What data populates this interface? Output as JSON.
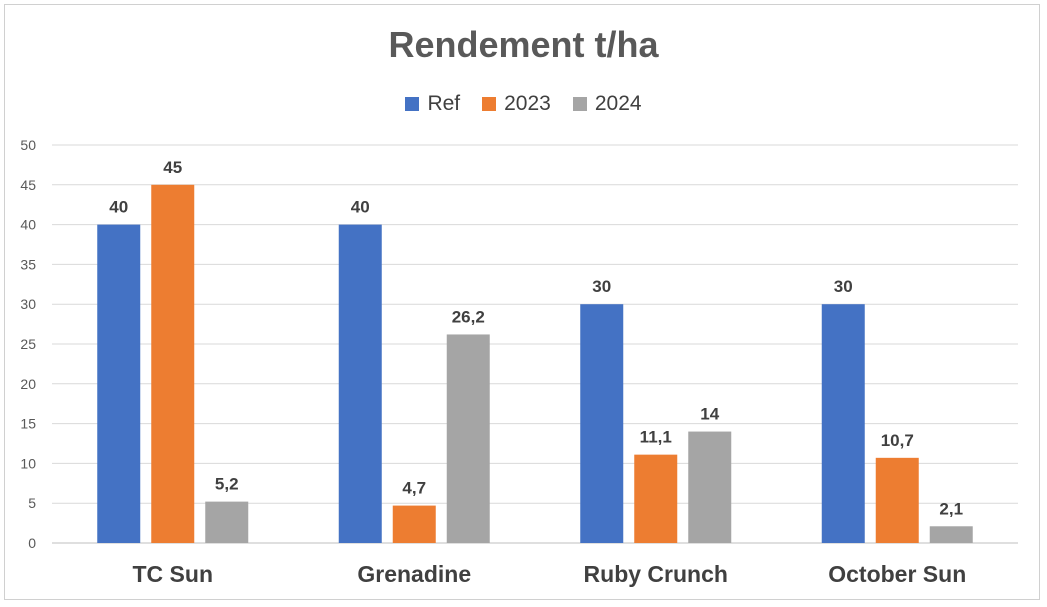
{
  "chart_data": {
    "type": "bar",
    "title": "Rendement t/ha",
    "categories": [
      "TC Sun",
      "Grenadine",
      "Ruby Crunch",
      "October Sun"
    ],
    "series": [
      {
        "name": "Ref",
        "values": [
          40,
          40,
          30,
          30
        ],
        "labels": [
          "40",
          "40",
          "30",
          "30"
        ],
        "color": "#4472C4"
      },
      {
        "name": "2023",
        "values": [
          45,
          4.7,
          11.1,
          10.7
        ],
        "labels": [
          "45",
          "4,7",
          "11,1",
          "10,7"
        ],
        "color": "#ED7D31"
      },
      {
        "name": "2024",
        "values": [
          5.2,
          26.2,
          14,
          2.1
        ],
        "labels": [
          "5,2",
          "26,2",
          "14",
          "2,1"
        ],
        "color": "#A5A5A5"
      }
    ],
    "ylim": [
      0,
      50
    ],
    "yticks": [
      "0",
      "5",
      "10",
      "15",
      "20",
      "25",
      "30",
      "35",
      "40",
      "45",
      "50"
    ],
    "grid": true,
    "legend": "top"
  }
}
